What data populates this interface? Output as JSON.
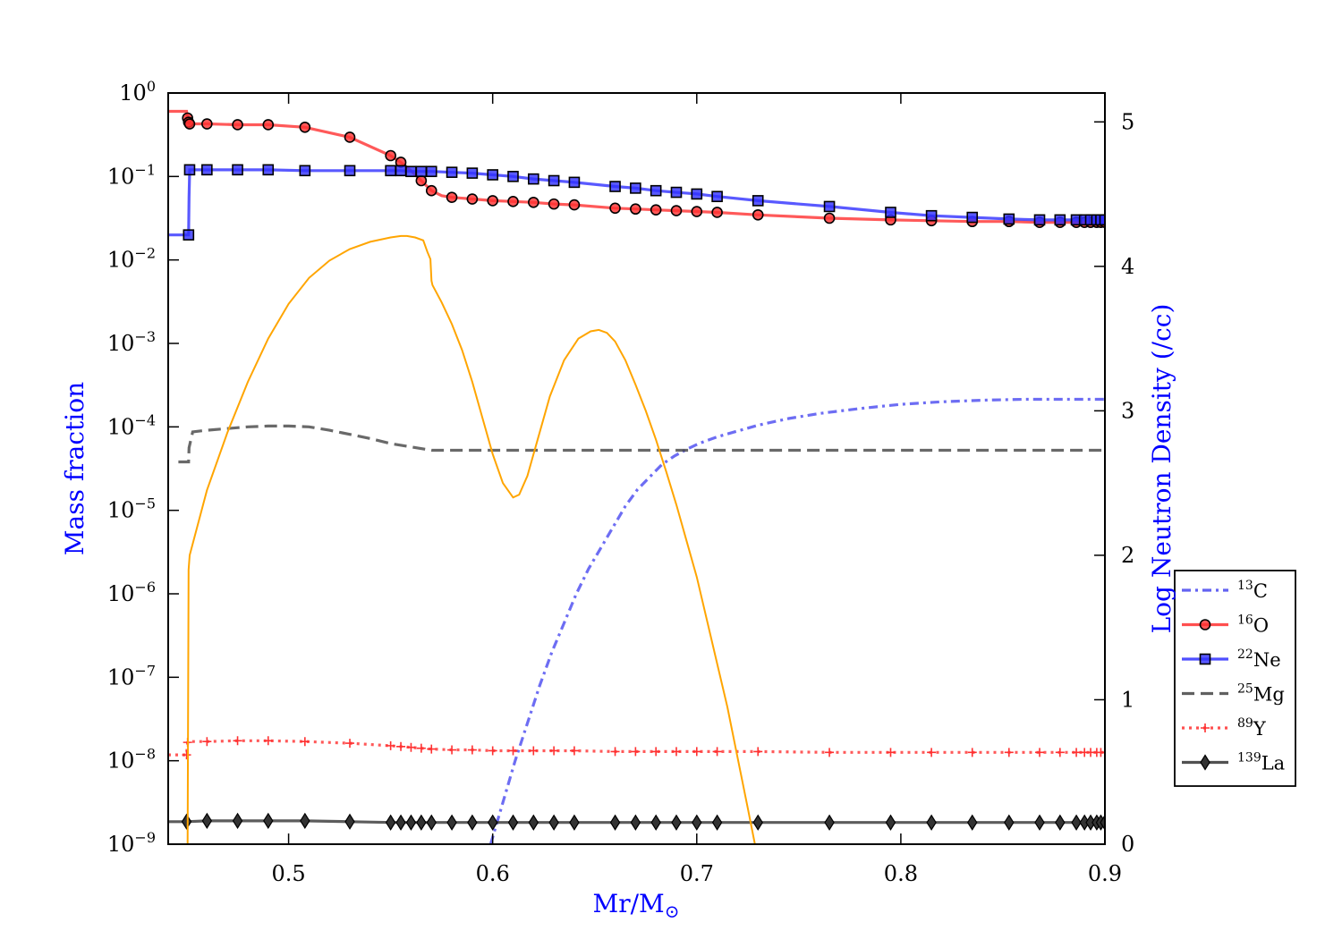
{
  "chart_data": {
    "type": "line",
    "xlabel": "Mr/M",
    "xlabel_symbol": "⊙",
    "ylabel_left": "Mass fraction",
    "ylabel_right": "Log Neutron Density (/cc)",
    "xlim": [
      0.441,
      0.9
    ],
    "ylim_left_log10": [
      -9,
      0
    ],
    "ylim_right": [
      0,
      5.2
    ],
    "y_scale_left": "log",
    "x_ticks": [
      {
        "value": 0.5,
        "label": "0.5"
      },
      {
        "value": 0.6,
        "label": "0.6"
      },
      {
        "value": 0.7,
        "label": "0.7"
      },
      {
        "value": 0.8,
        "label": "0.8"
      },
      {
        "value": 0.9,
        "label": "0.9"
      }
    ],
    "y_ticks_left": [
      {
        "exp": 0,
        "base": "10",
        "sup": "0"
      },
      {
        "exp": -1,
        "base": "10",
        "sup": "−1"
      },
      {
        "exp": -2,
        "base": "10",
        "sup": "−2"
      },
      {
        "exp": -3,
        "base": "10",
        "sup": "−3"
      },
      {
        "exp": -4,
        "base": "10",
        "sup": "−4"
      },
      {
        "exp": -5,
        "base": "10",
        "sup": "−5"
      },
      {
        "exp": -6,
        "base": "10",
        "sup": "−6"
      },
      {
        "exp": -7,
        "base": "10",
        "sup": "−7"
      },
      {
        "exp": -8,
        "base": "10",
        "sup": "−8"
      },
      {
        "exp": -9,
        "base": "10",
        "sup": "−9"
      }
    ],
    "y_ticks_right": [
      {
        "value": 0,
        "label": "0"
      },
      {
        "value": 1,
        "label": "1"
      },
      {
        "value": 2,
        "label": "2"
      },
      {
        "value": 3,
        "label": "3"
      },
      {
        "value": 4,
        "label": "4"
      },
      {
        "value": 5,
        "label": "5"
      }
    ],
    "legend_position": "right-outside",
    "colors": {
      "label_blue": "#0000ff",
      "red": "#ff2020",
      "blue": "#2020ff",
      "dark": "#333333",
      "orange": "#ffa500"
    },
    "series": [
      {
        "name": "C",
        "mass": "13",
        "axis": "left",
        "style": "dashdot",
        "color": "#4848f0",
        "marker": "none",
        "x": [
          0.599,
          0.605,
          0.611,
          0.617,
          0.623,
          0.629,
          0.635,
          0.641,
          0.647,
          0.653,
          0.659,
          0.665,
          0.671,
          0.677,
          0.683,
          0.689,
          0.695,
          0.701,
          0.71,
          0.72,
          0.73,
          0.745,
          0.76,
          0.78,
          0.8,
          0.82,
          0.84,
          0.86,
          0.88,
          0.9
        ],
        "logy": [
          -9.0,
          -8.5,
          -8.0,
          -7.55,
          -7.1,
          -6.7,
          -6.35,
          -6.0,
          -5.7,
          -5.45,
          -5.2,
          -4.95,
          -4.75,
          -4.6,
          -4.45,
          -4.35,
          -4.27,
          -4.2,
          -4.12,
          -4.05,
          -3.98,
          -3.9,
          -3.84,
          -3.78,
          -3.73,
          -3.7,
          -3.68,
          -3.67,
          -3.67,
          -3.67
        ]
      },
      {
        "name": "O",
        "mass": "16",
        "axis": "left",
        "style": "solid",
        "color": "#ff3030",
        "marker": "circle",
        "x": [
          0.441,
          0.45,
          0.4505,
          0.451,
          0.4515,
          0.46,
          0.475,
          0.49,
          0.508,
          0.53,
          0.55,
          0.555,
          0.56,
          0.565,
          0.57,
          0.575,
          0.58,
          0.59,
          0.6,
          0.61,
          0.62,
          0.63,
          0.64,
          0.66,
          0.67,
          0.68,
          0.69,
          0.7,
          0.71,
          0.73,
          0.765,
          0.795,
          0.815,
          0.835,
          0.853,
          0.868,
          0.878,
          0.886,
          0.89,
          0.893,
          0.896,
          0.898,
          0.9
        ],
        "logy": [
          -0.22,
          -0.22,
          -0.3,
          -0.35,
          -0.37,
          -0.37,
          -0.38,
          -0.38,
          -0.41,
          -0.53,
          -0.75,
          -0.83,
          -0.93,
          -1.05,
          -1.17,
          -1.23,
          -1.25,
          -1.27,
          -1.29,
          -1.3,
          -1.31,
          -1.33,
          -1.34,
          -1.38,
          -1.39,
          -1.4,
          -1.41,
          -1.42,
          -1.43,
          -1.46,
          -1.5,
          -1.52,
          -1.53,
          -1.54,
          -1.54,
          -1.55,
          -1.55,
          -1.55,
          -1.55,
          -1.55,
          -1.55,
          -1.55,
          -1.55
        ],
        "markers_x": [
          0.4505,
          0.451,
          0.4515,
          0.46,
          0.475,
          0.49,
          0.508,
          0.53,
          0.55,
          0.555,
          0.565,
          0.57,
          0.58,
          0.59,
          0.6,
          0.61,
          0.62,
          0.63,
          0.64,
          0.66,
          0.67,
          0.68,
          0.69,
          0.7,
          0.71,
          0.73,
          0.765,
          0.795,
          0.815,
          0.835,
          0.853,
          0.868,
          0.878,
          0.886,
          0.89,
          0.893,
          0.896,
          0.898,
          0.9
        ]
      },
      {
        "name": "Ne",
        "mass": "22",
        "axis": "left",
        "style": "solid",
        "color": "#3030ff",
        "marker": "square",
        "x": [
          0.441,
          0.451,
          0.4512,
          0.4515,
          0.46,
          0.475,
          0.49,
          0.508,
          0.53,
          0.55,
          0.555,
          0.56,
          0.565,
          0.57,
          0.58,
          0.59,
          0.6,
          0.61,
          0.62,
          0.63,
          0.64,
          0.66,
          0.67,
          0.68,
          0.69,
          0.7,
          0.71,
          0.73,
          0.765,
          0.795,
          0.815,
          0.835,
          0.853,
          0.868,
          0.878,
          0.886,
          0.89,
          0.893,
          0.896,
          0.898,
          0.9
        ],
        "logy": [
          -1.7,
          -1.7,
          -1.25,
          -0.92,
          -0.92,
          -0.92,
          -0.92,
          -0.93,
          -0.93,
          -0.93,
          -0.93,
          -0.94,
          -0.94,
          -0.94,
          -0.95,
          -0.96,
          -0.98,
          -1.0,
          -1.03,
          -1.05,
          -1.07,
          -1.12,
          -1.14,
          -1.17,
          -1.19,
          -1.21,
          -1.24,
          -1.29,
          -1.36,
          -1.43,
          -1.47,
          -1.49,
          -1.51,
          -1.52,
          -1.52,
          -1.52,
          -1.52,
          -1.52,
          -1.52,
          -1.52,
          -1.52
        ],
        "markers_x": [
          0.451,
          0.4515,
          0.46,
          0.475,
          0.49,
          0.508,
          0.53,
          0.55,
          0.555,
          0.56,
          0.565,
          0.57,
          0.58,
          0.59,
          0.6,
          0.61,
          0.62,
          0.63,
          0.64,
          0.66,
          0.67,
          0.68,
          0.69,
          0.7,
          0.71,
          0.73,
          0.765,
          0.795,
          0.815,
          0.835,
          0.853,
          0.868,
          0.878,
          0.886,
          0.89,
          0.893,
          0.896,
          0.898,
          0.9
        ]
      },
      {
        "name": "Mg",
        "mass": "25",
        "axis": "left",
        "style": "dashed",
        "color": "#444444",
        "marker": "none",
        "x": [
          0.446,
          0.451,
          0.4512,
          0.453,
          0.46,
          0.47,
          0.48,
          0.49,
          0.5,
          0.51,
          0.52,
          0.53,
          0.54,
          0.55,
          0.56,
          0.57,
          0.6,
          0.65,
          0.7,
          0.75,
          0.8,
          0.85,
          0.9
        ],
        "logy": [
          -4.42,
          -4.42,
          -4.25,
          -4.06,
          -4.04,
          -4.02,
          -4.0,
          -3.99,
          -3.99,
          -4.0,
          -4.04,
          -4.09,
          -4.14,
          -4.2,
          -4.24,
          -4.28,
          -4.28,
          -4.28,
          -4.28,
          -4.28,
          -4.28,
          -4.28,
          -4.28
        ]
      },
      {
        "name": "Y",
        "mass": "89",
        "axis": "left",
        "style": "dotted",
        "color": "#ff3030",
        "marker": "plus",
        "x": [
          0.441,
          0.45,
          0.4505,
          0.451,
          0.46,
          0.475,
          0.49,
          0.508,
          0.53,
          0.55,
          0.555,
          0.56,
          0.565,
          0.57,
          0.58,
          0.59,
          0.6,
          0.61,
          0.62,
          0.63,
          0.64,
          0.66,
          0.67,
          0.68,
          0.69,
          0.7,
          0.71,
          0.73,
          0.765,
          0.795,
          0.815,
          0.835,
          0.853,
          0.868,
          0.878,
          0.886,
          0.89,
          0.893,
          0.896,
          0.898,
          0.9
        ],
        "logy": [
          -7.93,
          -7.93,
          -7.78,
          -7.77,
          -7.77,
          -7.76,
          -7.76,
          -7.77,
          -7.79,
          -7.82,
          -7.83,
          -7.84,
          -7.85,
          -7.86,
          -7.87,
          -7.87,
          -7.88,
          -7.88,
          -7.88,
          -7.88,
          -7.88,
          -7.89,
          -7.89,
          -7.89,
          -7.89,
          -7.89,
          -7.89,
          -7.89,
          -7.9,
          -7.9,
          -7.9,
          -7.9,
          -7.9,
          -7.9,
          -7.9,
          -7.9,
          -7.9,
          -7.9,
          -7.9,
          -7.9,
          -7.9
        ],
        "markers_x": [
          0.45,
          0.4505,
          0.46,
          0.475,
          0.49,
          0.508,
          0.53,
          0.55,
          0.555,
          0.56,
          0.565,
          0.57,
          0.58,
          0.59,
          0.6,
          0.61,
          0.62,
          0.63,
          0.64,
          0.66,
          0.67,
          0.68,
          0.69,
          0.7,
          0.71,
          0.73,
          0.765,
          0.795,
          0.815,
          0.835,
          0.853,
          0.868,
          0.878,
          0.886,
          0.89,
          0.893,
          0.896,
          0.898,
          0.9
        ]
      },
      {
        "name": "La",
        "mass": "139",
        "axis": "left",
        "style": "solid",
        "color": "#333333",
        "marker": "diamond",
        "x": [
          0.441,
          0.45,
          0.46,
          0.475,
          0.49,
          0.508,
          0.53,
          0.55,
          0.555,
          0.56,
          0.565,
          0.57,
          0.58,
          0.59,
          0.6,
          0.61,
          0.62,
          0.63,
          0.64,
          0.66,
          0.67,
          0.68,
          0.69,
          0.7,
          0.71,
          0.73,
          0.765,
          0.795,
          0.815,
          0.835,
          0.853,
          0.868,
          0.878,
          0.886,
          0.89,
          0.893,
          0.896,
          0.898,
          0.9
        ],
        "logy": [
          -8.73,
          -8.73,
          -8.72,
          -8.72,
          -8.72,
          -8.72,
          -8.73,
          -8.74,
          -8.74,
          -8.74,
          -8.74,
          -8.74,
          -8.74,
          -8.74,
          -8.74,
          -8.74,
          -8.74,
          -8.74,
          -8.74,
          -8.74,
          -8.74,
          -8.74,
          -8.74,
          -8.74,
          -8.74,
          -8.74,
          -8.74,
          -8.74,
          -8.74,
          -8.74,
          -8.74,
          -8.74,
          -8.74,
          -8.74,
          -8.74,
          -8.74,
          -8.74,
          -8.74,
          -8.74
        ],
        "markers_x": [
          0.45,
          0.46,
          0.475,
          0.49,
          0.508,
          0.53,
          0.55,
          0.555,
          0.56,
          0.565,
          0.57,
          0.58,
          0.59,
          0.6,
          0.61,
          0.62,
          0.63,
          0.64,
          0.66,
          0.67,
          0.68,
          0.69,
          0.7,
          0.71,
          0.73,
          0.765,
          0.795,
          0.815,
          0.835,
          0.853,
          0.868,
          0.878,
          0.886,
          0.89,
          0.893,
          0.896,
          0.898,
          0.9
        ]
      },
      {
        "name": "",
        "axis": "right",
        "style": "solid",
        "color": "#ffa500",
        "marker": "none",
        "x": [
          0.4505,
          0.451,
          0.4515,
          0.46,
          0.47,
          0.48,
          0.49,
          0.5,
          0.51,
          0.52,
          0.53,
          0.54,
          0.55,
          0.555,
          0.558,
          0.562,
          0.566,
          0.568,
          0.5695,
          0.57,
          0.5705,
          0.575,
          0.58,
          0.585,
          0.59,
          0.595,
          0.6,
          0.605,
          0.61,
          0.613,
          0.617,
          0.622,
          0.628,
          0.635,
          0.642,
          0.648,
          0.652,
          0.656,
          0.66,
          0.665,
          0.67,
          0.675,
          0.68,
          0.685,
          0.69,
          0.695,
          0.7,
          0.705,
          0.71,
          0.715,
          0.72,
          0.725,
          0.7285
        ],
        "y": [
          0.0,
          1.9,
          2.0,
          2.45,
          2.85,
          3.2,
          3.5,
          3.74,
          3.92,
          4.04,
          4.12,
          4.17,
          4.2,
          4.21,
          4.21,
          4.2,
          4.18,
          4.1,
          4.05,
          3.9,
          3.87,
          3.75,
          3.6,
          3.42,
          3.2,
          2.95,
          2.7,
          2.5,
          2.4,
          2.42,
          2.55,
          2.8,
          3.1,
          3.35,
          3.5,
          3.55,
          3.56,
          3.54,
          3.48,
          3.35,
          3.18,
          3.0,
          2.8,
          2.58,
          2.35,
          2.1,
          1.85,
          1.55,
          1.25,
          0.95,
          0.6,
          0.25,
          0.0
        ]
      }
    ]
  }
}
